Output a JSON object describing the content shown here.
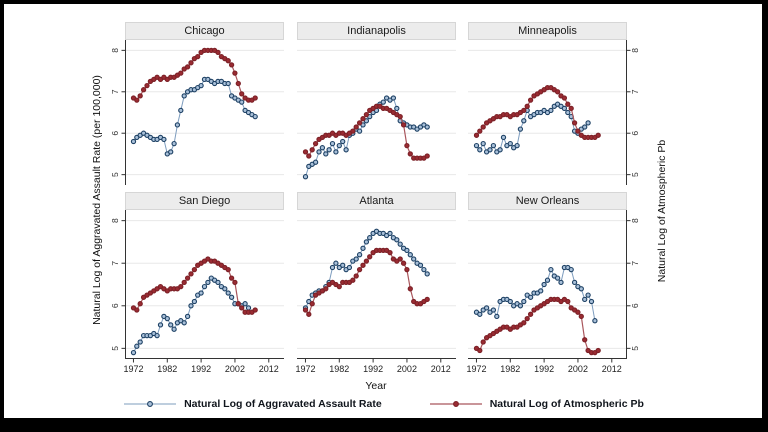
{
  "figure": {
    "ylabel_left": "Natural Log of Aggravated Assault Rate (per 100,000)",
    "ylabel_right": "Natural Log of Atmospheric Pb",
    "xlabel": "Year",
    "legend": [
      {
        "label": "Natural Log of Aggravated Assault Rate",
        "series": "assault"
      },
      {
        "label": "Natural Log of Atmospheric Pb",
        "series": "pb"
      }
    ]
  },
  "chart_data": {
    "type": "line",
    "layout": "2x3 small multiples, shared axes",
    "x_label": "Year",
    "x": [
      1972,
      1973,
      1974,
      1975,
      1976,
      1977,
      1978,
      1979,
      1980,
      1981,
      1982,
      1983,
      1984,
      1985,
      1986,
      1987,
      1988,
      1989,
      1990,
      1991,
      1992,
      1993,
      1994,
      1995,
      1996,
      1997,
      1998,
      1999,
      2000,
      2001,
      2002,
      2003,
      2004,
      2005,
      2006,
      2007,
      2008
    ],
    "x_ticks": [
      1972,
      1982,
      1992,
      2002,
      2012
    ],
    "y_ticks": [
      5,
      6,
      7,
      8
    ],
    "ylim": [
      4.75,
      8.25
    ],
    "xlim": [
      1969.5,
      2016.5
    ],
    "grid": true,
    "legend_position": "bottom",
    "series_names": [
      "Natural Log of Aggravated Assault Rate",
      "Natural Log of Atmospheric Pb"
    ],
    "colors": {
      "assault_line": "#7d9cbe",
      "assault_marker": "#a9c0d9",
      "assault_marker_edge": "#1e4164",
      "pb_line": "#a9565c",
      "pb_marker": "#9a2b32",
      "pb_marker_edge": "#7c2127",
      "gridline": "#e8e8e8",
      "axis": "#333333",
      "header_bg": "#ececec"
    },
    "panels": [
      {
        "title": "Chicago",
        "assault": [
          5.8,
          5.9,
          5.95,
          6.0,
          5.95,
          5.9,
          5.85,
          5.85,
          5.9,
          5.85,
          5.5,
          5.55,
          5.75,
          6.2,
          6.55,
          6.9,
          7.0,
          7.05,
          7.05,
          7.1,
          7.15,
          7.3,
          7.3,
          7.25,
          7.2,
          7.25,
          7.25,
          7.2,
          7.2,
          6.9,
          6.85,
          6.8,
          6.75,
          6.55,
          6.5,
          6.45,
          6.4
        ],
        "pb": [
          6.85,
          6.8,
          6.9,
          7.05,
          7.15,
          7.25,
          7.3,
          7.35,
          7.3,
          7.35,
          7.3,
          7.35,
          7.35,
          7.4,
          7.45,
          7.55,
          7.6,
          7.7,
          7.8,
          7.85,
          7.95,
          8.0,
          8.0,
          8.0,
          8.0,
          7.95,
          7.85,
          7.8,
          7.75,
          7.65,
          7.45,
          7.2,
          6.95,
          6.85,
          6.8,
          6.8,
          6.85
        ]
      },
      {
        "title": "Indianapolis",
        "assault": [
          4.95,
          5.2,
          5.25,
          5.3,
          5.55,
          5.65,
          5.5,
          5.6,
          5.75,
          5.55,
          5.7,
          5.8,
          5.6,
          5.95,
          6.0,
          6.1,
          6.05,
          6.2,
          6.3,
          6.4,
          6.5,
          6.55,
          6.7,
          6.75,
          6.85,
          6.8,
          6.85,
          6.6,
          6.3,
          6.25,
          6.2,
          6.15,
          6.15,
          6.1,
          6.15,
          6.2,
          6.15
        ],
        "pb": [
          5.55,
          5.45,
          5.6,
          5.75,
          5.85,
          5.9,
          5.95,
          5.95,
          6.0,
          5.95,
          6.0,
          6.0,
          5.95,
          6.0,
          6.05,
          6.15,
          6.25,
          6.35,
          6.45,
          6.55,
          6.6,
          6.65,
          6.65,
          6.6,
          6.6,
          6.55,
          6.5,
          6.45,
          6.4,
          6.2,
          5.7,
          5.5,
          5.4,
          5.4,
          5.4,
          5.4,
          5.45
        ]
      },
      {
        "title": "Minneapolis",
        "assault": [
          5.7,
          5.6,
          5.75,
          5.55,
          5.6,
          5.7,
          5.55,
          5.6,
          5.9,
          5.7,
          5.75,
          5.65,
          5.7,
          6.1,
          6.3,
          6.55,
          6.4,
          6.45,
          6.5,
          6.5,
          6.55,
          6.5,
          6.55,
          6.65,
          6.7,
          6.65,
          6.6,
          6.5,
          6.4,
          6.05,
          6.0,
          6.1,
          6.15,
          6.25,
          null,
          null,
          null
        ],
        "pb": [
          5.95,
          6.05,
          6.15,
          6.25,
          6.3,
          6.35,
          6.4,
          6.4,
          6.45,
          6.45,
          6.4,
          6.45,
          6.45,
          6.5,
          6.55,
          6.65,
          6.8,
          6.9,
          6.95,
          7.0,
          7.05,
          7.1,
          7.1,
          7.05,
          7.0,
          6.9,
          6.85,
          6.7,
          6.6,
          6.25,
          6.05,
          5.95,
          5.9,
          5.9,
          5.9,
          5.9,
          5.95
        ]
      },
      {
        "title": "San Diego",
        "assault": [
          4.9,
          5.05,
          5.15,
          5.3,
          5.3,
          5.3,
          5.35,
          5.3,
          5.55,
          5.75,
          5.7,
          5.55,
          5.45,
          5.6,
          5.65,
          5.6,
          5.75,
          6.0,
          6.1,
          6.25,
          6.3,
          6.45,
          6.55,
          6.65,
          6.6,
          6.55,
          6.45,
          6.4,
          6.3,
          6.2,
          6.05,
          6.05,
          6.0,
          6.05,
          5.95,
          null,
          null
        ],
        "pb": [
          5.95,
          5.9,
          6.05,
          6.2,
          6.25,
          6.3,
          6.35,
          6.4,
          6.45,
          6.4,
          6.35,
          6.4,
          6.4,
          6.4,
          6.45,
          6.55,
          6.65,
          6.75,
          6.85,
          6.95,
          7.0,
          7.05,
          7.1,
          7.05,
          7.05,
          7.0,
          6.95,
          6.9,
          6.85,
          6.65,
          6.55,
          6.05,
          5.95,
          5.85,
          5.85,
          5.85,
          5.9
        ]
      },
      {
        "title": "Atlanta",
        "assault": [
          5.95,
          6.1,
          6.25,
          6.3,
          6.35,
          6.35,
          6.45,
          6.55,
          6.9,
          7.0,
          6.9,
          6.95,
          6.85,
          6.9,
          7.05,
          7.1,
          7.2,
          7.35,
          7.5,
          7.6,
          7.7,
          7.75,
          7.7,
          7.7,
          7.65,
          7.7,
          7.6,
          7.55,
          7.45,
          7.35,
          7.3,
          7.2,
          7.1,
          7.0,
          6.95,
          6.85,
          6.75
        ],
        "pb": [
          5.9,
          5.8,
          6.05,
          6.25,
          6.3,
          6.35,
          6.4,
          6.5,
          6.55,
          6.5,
          6.45,
          6.55,
          6.55,
          6.55,
          6.6,
          6.7,
          6.85,
          6.95,
          7.05,
          7.15,
          7.25,
          7.3,
          7.3,
          7.3,
          7.3,
          7.25,
          7.1,
          7.05,
          7.1,
          7.0,
          6.85,
          6.4,
          6.1,
          6.05,
          6.05,
          6.1,
          6.15
        ]
      },
      {
        "title": "New Orleans",
        "assault": [
          5.85,
          5.8,
          5.9,
          5.95,
          5.85,
          5.9,
          5.75,
          6.1,
          6.15,
          6.15,
          6.1,
          6.0,
          6.05,
          6.0,
          6.1,
          6.25,
          6.2,
          6.3,
          6.3,
          6.35,
          6.5,
          6.6,
          6.85,
          6.7,
          6.65,
          6.55,
          6.9,
          6.9,
          6.85,
          6.55,
          6.45,
          6.4,
          6.15,
          6.25,
          6.1,
          5.65,
          null
        ],
        "pb": [
          5.0,
          4.95,
          5.15,
          5.25,
          5.3,
          5.35,
          5.4,
          5.45,
          5.5,
          5.5,
          5.45,
          5.5,
          5.5,
          5.55,
          5.6,
          5.7,
          5.8,
          5.9,
          5.95,
          6.0,
          6.05,
          6.1,
          6.15,
          6.15,
          6.15,
          6.1,
          6.15,
          6.1,
          5.95,
          5.9,
          5.85,
          5.75,
          5.2,
          4.95,
          4.9,
          4.9,
          4.95
        ]
      }
    ]
  }
}
